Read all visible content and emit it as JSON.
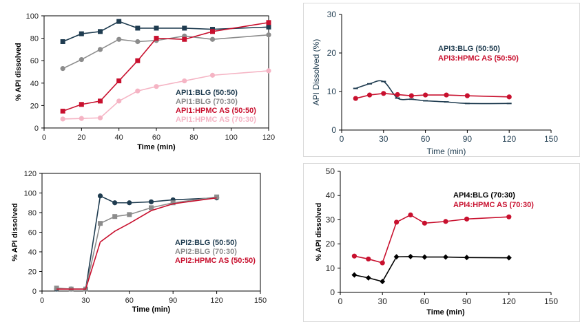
{
  "chart_data": [
    {
      "type": "line",
      "xlabel": "Time (min)",
      "ylabel": "% API dissolved",
      "xlim": [
        0,
        120
      ],
      "xticks": [
        0,
        20,
        40,
        60,
        80,
        100,
        120
      ],
      "ylim": [
        0,
        100
      ],
      "yticks": [
        0,
        20,
        40,
        60,
        80,
        100
      ],
      "grid": false,
      "frame": "box",
      "legend_position": "bottom-right",
      "series": [
        {
          "name": "API1:BLG (50:50)",
          "color": "#1f3c50",
          "marker": "square",
          "x": [
            10,
            20,
            30,
            40,
            50,
            60,
            75,
            90,
            120
          ],
          "y": [
            77,
            84,
            86,
            95,
            89,
            89,
            89,
            88,
            90
          ]
        },
        {
          "name": "API1:BLG (70:30)",
          "color": "#8c8c8c",
          "marker": "circle",
          "x": [
            10,
            20,
            30,
            40,
            50,
            60,
            75,
            90,
            120
          ],
          "y": [
            53,
            61,
            70,
            79,
            77,
            78,
            82,
            79,
            83
          ]
        },
        {
          "name": "API1:HPMC AS (50:50)",
          "color": "#c8102e",
          "marker": "square",
          "x": [
            10,
            20,
            30,
            40,
            50,
            60,
            75,
            90,
            120
          ],
          "y": [
            15,
            21,
            24,
            42,
            60,
            80,
            79,
            86,
            94
          ]
        },
        {
          "name": "API1:HPMC AS (70:30)",
          "color": "#f5b4c4",
          "marker": "circle",
          "x": [
            10,
            20,
            30,
            40,
            50,
            60,
            75,
            90,
            120
          ],
          "y": [
            8,
            8.5,
            9,
            24,
            33,
            37,
            42,
            47,
            51
          ]
        }
      ]
    },
    {
      "type": "line",
      "xlabel": "Time (min)",
      "ylabel": "API Dissolved (%)",
      "xlim": [
        0,
        150
      ],
      "xticks": [
        0,
        30,
        60,
        90,
        120,
        150
      ],
      "ylim": [
        0,
        30
      ],
      "yticks": [
        0,
        10,
        20,
        30
      ],
      "grid": false,
      "frame": "axes",
      "legend_position": "top-right",
      "series": [
        {
          "name": "API3:BLG (50:50)",
          "color": "#1f3c50",
          "marker": "dash",
          "smooth": true,
          "x": [
            10,
            20,
            30,
            40,
            50,
            60,
            75,
            90,
            120
          ],
          "y": [
            10.8,
            12.0,
            12.6,
            8.3,
            8.0,
            7.6,
            7.3,
            6.9,
            6.9
          ]
        },
        {
          "name": "API3:HPMC AS (50:50)",
          "color": "#c8102e",
          "marker": "circle",
          "x": [
            10,
            20,
            30,
            40,
            50,
            60,
            75,
            90,
            120
          ],
          "y": [
            8.2,
            9.1,
            9.5,
            9.2,
            8.9,
            9.1,
            9.1,
            8.9,
            8.6
          ]
        }
      ]
    },
    {
      "type": "line",
      "xlabel": "Time (min)",
      "ylabel": "% API dissolved",
      "xlim": [
        0,
        150
      ],
      "xticks": [
        0,
        30,
        60,
        90,
        120,
        150
      ],
      "ylim": [
        0,
        120
      ],
      "yticks": [
        0,
        20,
        40,
        60,
        80,
        100,
        120
      ],
      "grid": false,
      "frame": "box",
      "legend_position": "bottom-right",
      "series": [
        {
          "name": "API2:BLG (50:50)",
          "color": "#1f3c50",
          "marker": "circle",
          "x": [
            10,
            20,
            30,
            40,
            50,
            60,
            75,
            90,
            120
          ],
          "y": [
            2,
            2,
            2,
            97,
            90,
            90,
            91,
            93,
            95
          ]
        },
        {
          "name": "API2:BLG (70:30)",
          "color": "#8c8c8c",
          "marker": "square",
          "x": [
            10,
            20,
            30,
            40,
            50,
            60,
            75,
            90,
            120
          ],
          "y": [
            3,
            2,
            2,
            69,
            76,
            78,
            85,
            90,
            96
          ]
        },
        {
          "name": "API2:HPMC AS (50:50)",
          "color": "#c8102e",
          "marker": "none",
          "x": [
            10,
            20,
            30,
            40,
            50,
            60,
            75,
            90,
            120
          ],
          "y": [
            2,
            2,
            2,
            50,
            61,
            69,
            82,
            89,
            95
          ]
        }
      ]
    },
    {
      "type": "line",
      "xlabel": "Time (min)",
      "ylabel": "% API dissolved",
      "xlim": [
        0,
        150
      ],
      "xticks": [
        0,
        30,
        60,
        90,
        120,
        150
      ],
      "ylim": [
        0,
        50
      ],
      "yticks": [
        0,
        10,
        20,
        30,
        40,
        50
      ],
      "grid": false,
      "frame": "axes",
      "legend_position": "top-right",
      "series": [
        {
          "name": "API4:BLG (70:30)",
          "color": "#000000",
          "marker": "diamond",
          "x": [
            10,
            20,
            30,
            40,
            50,
            60,
            75,
            90,
            120
          ],
          "y": [
            7.2,
            6.0,
            4.5,
            14.7,
            14.8,
            14.6,
            14.6,
            14.4,
            14.3
          ]
        },
        {
          "name": "API4:HPMC AS (70:30)",
          "color": "#c8102e",
          "marker": "circle",
          "x": [
            10,
            20,
            30,
            40,
            50,
            60,
            75,
            90,
            120
          ],
          "y": [
            15.0,
            13.8,
            12.2,
            29.0,
            32.0,
            28.6,
            29.3,
            30.3,
            31.2
          ]
        }
      ]
    }
  ]
}
